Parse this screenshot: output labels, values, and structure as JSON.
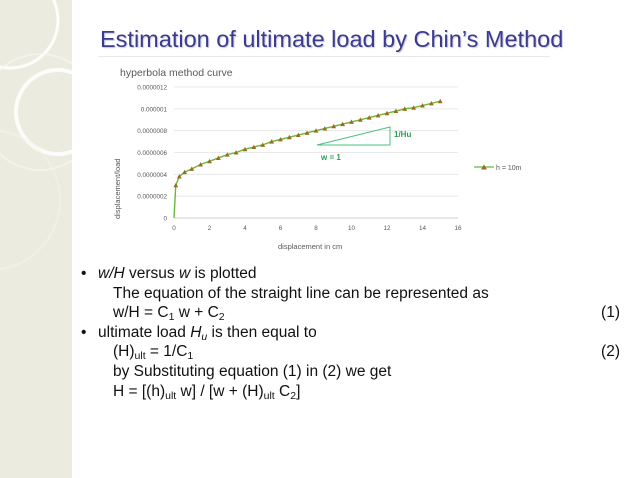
{
  "slide": {
    "title": "Estimation of ultimate load by Chin’s Method",
    "accent_color": "#3b3b8f"
  },
  "chart_data": {
    "type": "line",
    "title": "hyperbola method curve",
    "xlabel": "displacement in cm",
    "ylabel": "displacement/load",
    "xlim": [
      0,
      16
    ],
    "ylim": [
      0,
      1.2e-06
    ],
    "x_ticks": [
      "0",
      "2",
      "4",
      "6",
      "8",
      "10",
      "12",
      "14",
      "16"
    ],
    "y_ticks": [
      "0",
      "0.0000002",
      "0.0000004",
      "0.0000006",
      "0.0000008",
      "0.000001",
      "0.0000012"
    ],
    "grid": "horizontal",
    "legend_position": "right",
    "series": [
      {
        "name": "h = 10m",
        "color": "#6ab73d",
        "marker_color": "#9c6b1e",
        "x": [
          0,
          0.1,
          0.3,
          0.6,
          1,
          1.5,
          2,
          2.5,
          3,
          3.5,
          4,
          4.5,
          5,
          5.5,
          6,
          6.5,
          7,
          7.5,
          8,
          8.5,
          9,
          9.5,
          10,
          10.5,
          11,
          11.5,
          12,
          12.5,
          13,
          13.5,
          14,
          14.5,
          15
        ],
        "y": [
          0,
          3e-07,
          3.8e-07,
          4.2e-07,
          4.5e-07,
          4.9e-07,
          5.2e-07,
          5.5e-07,
          5.8e-07,
          6e-07,
          6.3e-07,
          6.5e-07,
          6.7e-07,
          7e-07,
          7.2e-07,
          7.4e-07,
          7.6e-07,
          7.8e-07,
          8e-07,
          8.2e-07,
          8.4e-07,
          8.6e-07,
          8.8e-07,
          9e-07,
          9.2e-07,
          9.4e-07,
          9.6e-07,
          9.8e-07,
          1e-06,
          1.01e-06,
          1.03e-06,
          1.05e-06,
          1.07e-06
        ]
      }
    ],
    "annotations": [
      {
        "text": "1/Hu",
        "color": "#2e9b57"
      },
      {
        "text": "w = 1",
        "color": "#2e9b57"
      }
    ]
  },
  "bullets": [
    {
      "kind": "bullet",
      "parts": [
        [
          "i",
          "w/H"
        ],
        [
          "t",
          " versus "
        ],
        [
          "i",
          "w"
        ],
        [
          "t",
          " is plotted"
        ]
      ]
    },
    {
      "kind": "indent",
      "parts": [
        [
          "t",
          "The equation of the straight line can be represented as"
        ]
      ]
    },
    {
      "kind": "indent",
      "parts": [
        [
          "t",
          "w/H = C"
        ],
        [
          "s",
          "1"
        ],
        [
          "t",
          " w + C"
        ],
        [
          "s",
          "2"
        ]
      ],
      "number": "(1)"
    },
    {
      "kind": "bullet",
      "parts": [
        [
          "t",
          "ultimate load "
        ],
        [
          "i",
          "H"
        ],
        [
          "si",
          "u"
        ],
        [
          "t",
          " is then equal to"
        ]
      ]
    },
    {
      "kind": "indent",
      "parts": [
        [
          "t",
          "(H)"
        ],
        [
          "s",
          "ult"
        ],
        [
          "t",
          " = 1/C"
        ],
        [
          "s",
          "1"
        ]
      ],
      "number": "(2)"
    },
    {
      "kind": "indent",
      "parts": [
        [
          "t",
          "by Substituting equation (1) in (2) we get"
        ]
      ]
    },
    {
      "kind": "indent",
      "parts": [
        [
          "t",
          "H = [(h)"
        ],
        [
          "s",
          "ult"
        ],
        [
          "t",
          " w] / [w + (H)"
        ],
        [
          "s",
          "ult"
        ],
        [
          "t",
          " C"
        ],
        [
          "s",
          "2"
        ],
        [
          "t",
          "]"
        ]
      ]
    }
  ],
  "bullet_glyph": "•"
}
